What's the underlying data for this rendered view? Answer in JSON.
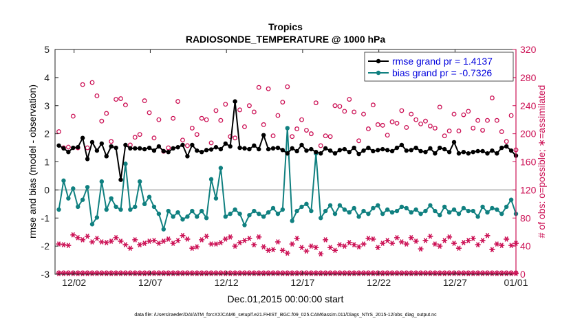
{
  "chart_data": {
    "type": "line",
    "title": "Tropics",
    "subtitle": "RADIOSONDE_TEMPERATURE @ 1000 hPa",
    "xlabel": "Dec.01,2015 00:00:00 start",
    "ylabel": "rmse and bias (model - observation)",
    "y2label": "# of obs: o=possible; ∗=assimilated",
    "footer": "data file: /Users/raeder/DAI/ATM_forcXX/CAM6_setup/f.e21.FHIST_BGC.f09_025.CAM6assim.011/Diags_NTrS_2015-12/obs_diag_output.nc",
    "xlim": [
      0.75,
      31
    ],
    "ylim": [
      -3,
      5
    ],
    "y2lim": [
      0,
      320
    ],
    "xticks": [
      2,
      7,
      12,
      17,
      22,
      27,
      32
    ],
    "xticklabels": [
      "12/02",
      "12/07",
      "12/12",
      "12/17",
      "12/22",
      "12/27",
      "01/01"
    ],
    "yticks": [
      -3,
      -2,
      -1,
      0,
      1,
      2,
      3,
      4,
      5
    ],
    "y2ticks": [
      0,
      40,
      80,
      120,
      160,
      200,
      240,
      280,
      320
    ],
    "colors": {
      "rmse": "#000000",
      "bias": "#108080",
      "count": "#cc1155",
      "zero": "#aaaaaa",
      "legend_rmse": "#0000dd",
      "legend_bias": "#0000dd"
    },
    "legend_position": "top-right",
    "legend": [
      "rmse grand pr = 1.4137",
      "bias grand pr = -0.7326"
    ],
    "series": [
      {
        "name": "rmse",
        "values": [
          1.58,
          1.48,
          1.35,
          1.5,
          1.52,
          1.85,
          1.1,
          1.7,
          1.4,
          1.65,
          1.2,
          1.55,
          1.5,
          0.36,
          1.6,
          1.48,
          1.48,
          1.48,
          1.45,
          1.5,
          1.4,
          1.55,
          1.38,
          1.35,
          1.48,
          1.52,
          1.6,
          1.2,
          1.6,
          1.4,
          1.35,
          1.42,
          1.44,
          1.52,
          1.45,
          1.65,
          1.55,
          3.15,
          1.5,
          1.48,
          1.45,
          1.58,
          1.45,
          1.95,
          1.45,
          1.48,
          1.5,
          1.42,
          1.3,
          1.48,
          1.38,
          1.6,
          1.4,
          1.45,
          1.35,
          1.3,
          1.48,
          1.4,
          1.3,
          1.42,
          1.45,
          1.35,
          1.5,
          1.28,
          1.4,
          1.5,
          1.38,
          1.42,
          1.45,
          1.42,
          1.38,
          1.5,
          1.6,
          1.4,
          1.42,
          1.5,
          1.38,
          1.35,
          1.48,
          1.3,
          1.5,
          1.45,
          1.35,
          1.7,
          1.3,
          1.35,
          1.3,
          1.35,
          1.38,
          1.38,
          1.3,
          1.4,
          1.3,
          1.5,
          1.55,
          1.4,
          1.22
        ]
      },
      {
        "name": "bias",
        "values": [
          -0.7,
          0.33,
          -0.3,
          0.05,
          -0.6,
          -0.35,
          0.1,
          -1.22,
          -0.98,
          0.3,
          -0.7,
          -0.3,
          -0.6,
          -0.7,
          0.93,
          -0.7,
          -0.6,
          0.3,
          -0.5,
          -0.25,
          -0.6,
          -0.85,
          -1.4,
          -0.75,
          -0.95,
          -0.8,
          -1.05,
          -0.95,
          -0.75,
          -0.95,
          -0.75,
          -1.0,
          0.38,
          -0.3,
          0.78,
          -0.95,
          -0.85,
          -0.7,
          -0.85,
          -1.25,
          -0.9,
          -0.75,
          -0.85,
          -0.95,
          -0.8,
          -0.65,
          -0.85,
          -0.7,
          2.2,
          -1.1,
          -0.75,
          -0.6,
          -0.5,
          -0.75,
          1.3,
          -1.0,
          -0.75,
          -0.55,
          -0.85,
          -0.55,
          -0.7,
          -0.8,
          -0.65,
          -0.95,
          -0.75,
          -0.85,
          -0.65,
          -0.55,
          -0.85,
          -0.7,
          -0.8,
          -0.75,
          -0.6,
          -0.65,
          -0.8,
          -0.7,
          -0.85,
          -0.75,
          -0.55,
          -0.75,
          -0.9,
          -0.6,
          -0.8,
          -0.7,
          -0.85,
          -0.65,
          -0.75,
          -0.75,
          -0.95,
          -0.6,
          -0.8,
          -0.65,
          -0.7,
          -0.85,
          -0.6,
          -0.35,
          -0.85
        ]
      },
      {
        "name": "possible",
        "values": [
          203,
          180,
          181,
          225,
          180,
          270,
          180,
          273,
          254,
          218,
          229,
          189,
          249,
          250,
          241,
          184,
          195,
          199,
          247,
          230,
          194,
          220,
          175,
          180,
          222,
          246,
          191,
          183,
          208,
          199,
          222,
          220,
          187,
          233,
          219,
          242,
          196,
          194,
          234,
          210,
          240,
          231,
          266,
          213,
          264,
          197,
          226,
          245,
          267,
          196,
          207,
          220,
          205,
          200,
          244,
          183,
          197,
          196,
          240,
          239,
          232,
          249,
          231,
          190,
          228,
          207,
          241,
          213,
          212,
          198,
          217,
          215,
          233,
          209,
          228,
          220,
          214,
          218,
          211,
          208,
          238,
          197,
          204,
          228,
          204,
          227,
          232,
          208,
          219,
          205,
          219,
          251,
          219,
          203,
          189,
          226,
          177
        ]
      },
      {
        "name": "assimilated",
        "values": [
          43,
          42,
          41,
          56,
          52,
          49,
          54,
          46,
          51,
          46,
          45,
          47,
          52,
          47,
          42,
          37,
          49,
          42,
          44,
          47,
          48,
          44,
          47,
          50,
          44,
          48,
          55,
          50,
          37,
          39,
          49,
          54,
          43,
          43,
          45,
          50,
          53,
          40,
          45,
          48,
          51,
          42,
          53,
          39,
          34,
          35,
          46,
          34,
          30,
          43,
          51,
          38,
          33,
          40,
          38,
          29,
          49,
          38,
          34,
          42,
          40,
          45,
          42,
          39,
          43,
          51,
          50,
          38,
          44,
          48,
          44,
          52,
          46,
          43,
          52,
          47,
          36,
          48,
          54,
          43,
          40,
          48,
          53,
          44,
          37,
          45,
          48,
          51,
          42,
          48,
          55,
          35,
          43,
          41,
          50,
          41,
          44
        ]
      }
    ]
  }
}
